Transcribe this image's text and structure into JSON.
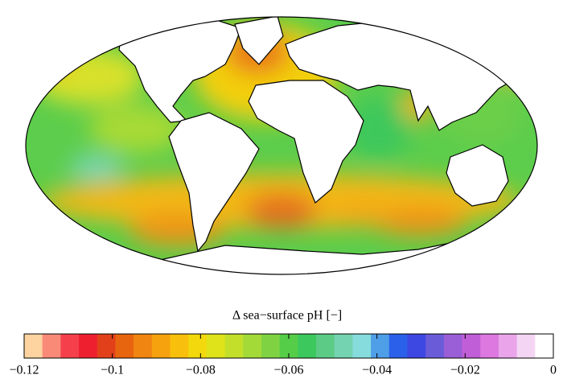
{
  "colorbar": {
    "label": "Δ sea−surface pH [−]",
    "lim": [
      -0.12,
      0
    ],
    "ticks": [
      {
        "value": -0.12,
        "label": "−0.12"
      },
      {
        "value": -0.1,
        "label": "−0.1"
      },
      {
        "value": -0.08,
        "label": "−0.08"
      },
      {
        "value": -0.06,
        "label": "−0.06"
      },
      {
        "value": -0.04,
        "label": "−0.04"
      },
      {
        "value": -0.02,
        "label": "−0.02"
      },
      {
        "value": 0,
        "label": "0"
      }
    ],
    "colors": [
      "#fdd3a0",
      "#f98a78",
      "#f5404c",
      "#ee2030",
      "#e2401a",
      "#e8650f",
      "#f08512",
      "#f6a20e",
      "#f8c00c",
      "#f2d80c",
      "#dfe31a",
      "#c3df2a",
      "#a3da38",
      "#7fd343",
      "#55cd48",
      "#3cc85c",
      "#5bcb86",
      "#74d3b0",
      "#86dcdc",
      "#4f9ee8",
      "#2a60ea",
      "#3d47e2",
      "#6a5cd8",
      "#9a5fd6",
      "#c05ed8",
      "#dc78e0",
      "#eaa5ea",
      "#f4d6f4",
      "#ffffff"
    ]
  }
}
